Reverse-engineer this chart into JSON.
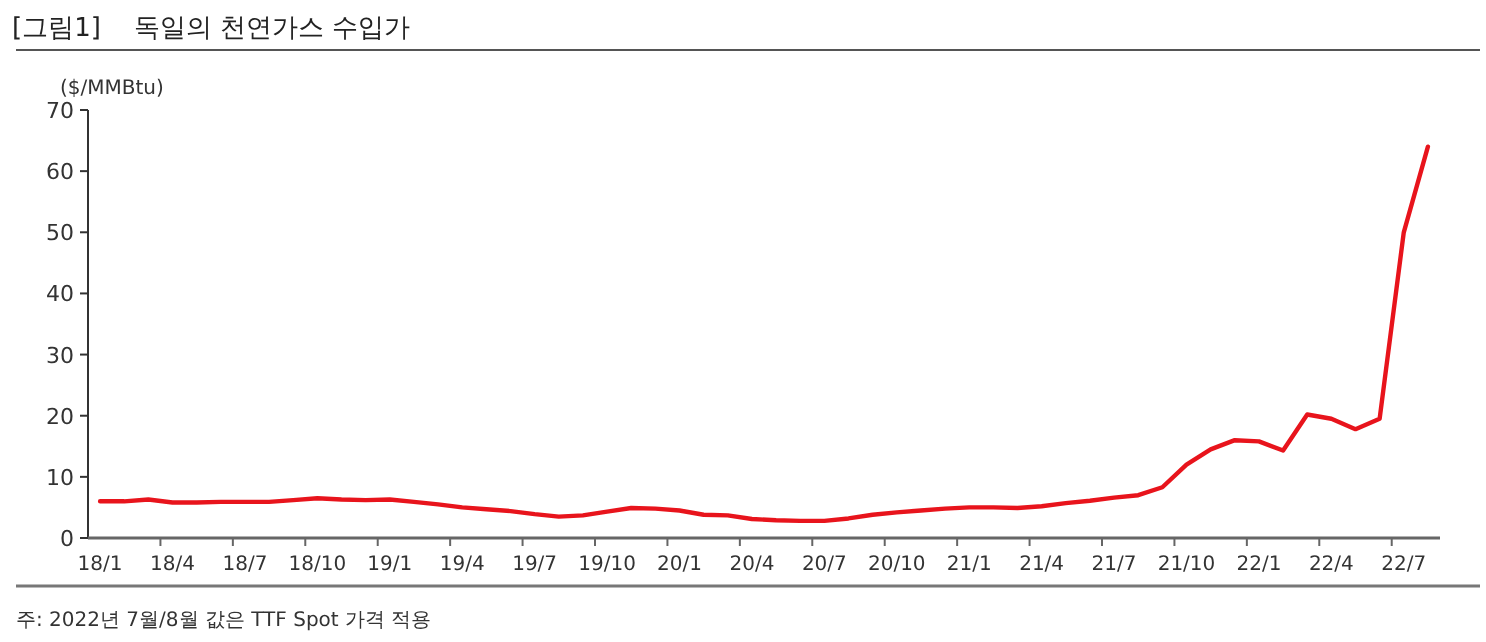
{
  "chart_data": {
    "type": "line",
    "title": "[그림1]    독일의 천연가스 수입가",
    "ylabel": "($/MMBtu)",
    "categories": [
      "18/1",
      null,
      null,
      "18/4",
      null,
      null,
      "18/7",
      null,
      null,
      "18/10",
      null,
      null,
      "19/1",
      null,
      null,
      "19/4",
      null,
      null,
      "19/7",
      null,
      null,
      "19/10",
      null,
      null,
      "20/1",
      null,
      null,
      "20/4",
      null,
      null,
      "20/7",
      null,
      null,
      "20/10",
      null,
      null,
      "21/1",
      null,
      null,
      "21/4",
      null,
      null,
      "21/7",
      null,
      null,
      "21/10",
      null,
      null,
      "22/1",
      null,
      null,
      "22/4",
      null,
      null,
      "22/7",
      null
    ],
    "series": [
      {
        "color": "#e8141c",
        "values": [
          6.0,
          6.0,
          6.3,
          5.8,
          5.8,
          5.9,
          5.9,
          5.9,
          6.2,
          6.5,
          6.3,
          6.2,
          6.3,
          5.9,
          5.5,
          5.0,
          4.7,
          4.4,
          3.9,
          3.5,
          3.7,
          4.3,
          4.9,
          4.8,
          4.5,
          3.8,
          3.7,
          3.1,
          2.9,
          2.8,
          2.8,
          3.2,
          3.8,
          4.2,
          4.5,
          4.8,
          5.0,
          5.0,
          4.9,
          5.2,
          5.7,
          6.1,
          6.6,
          7.0,
          8.3,
          12.0,
          14.5,
          16.0,
          15.8,
          14.3,
          20.2,
          19.5,
          17.8,
          19.5,
          50,
          64
        ]
      }
    ],
    "ylim": [
      0,
      70
    ],
    "yticks": [
      0,
      10,
      20,
      30,
      40,
      50,
      60,
      70
    ],
    "grid": false,
    "annotations": [
      "주: 2022년 7월/8월 값은 TTF Spot 가격 적용"
    ]
  }
}
